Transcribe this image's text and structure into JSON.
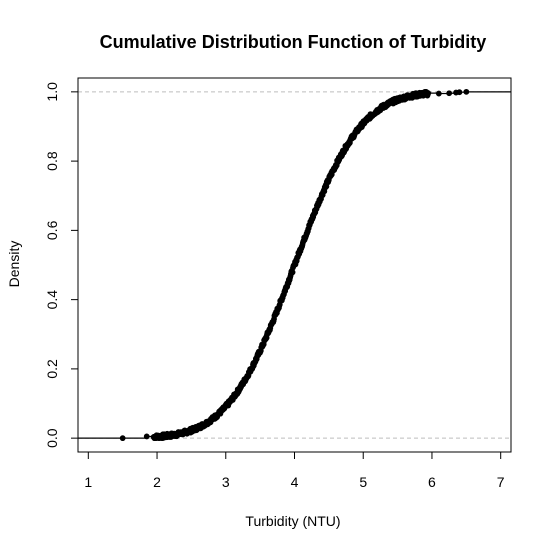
{
  "chart_data": {
    "type": "scatter",
    "title": "Cumulative Distribution Function of Turbidity",
    "xlabel": "Turbidity (NTU)",
    "ylabel": "Density",
    "xlim": [
      0.85,
      7.15
    ],
    "ylim": [
      -0.04,
      1.04
    ],
    "xticks": [
      1,
      2,
      3,
      4,
      5,
      6,
      7
    ],
    "yticks": [
      0.0,
      0.2,
      0.4,
      0.6,
      0.8,
      1.0
    ],
    "ytick_labels": [
      "0.0",
      "0.2",
      "0.4",
      "0.6",
      "0.8",
      "1.0"
    ],
    "reference_lines": [
      0,
      1
    ],
    "reference_line_style": "dashed",
    "reference_line_color": "#bebebe",
    "step_line": true,
    "point_color": "#000000",
    "sample_count": 1000,
    "distribution_mean": 4.0,
    "distribution_sd": 0.75,
    "points": [
      {
        "x": 1.5,
        "y": 0.0
      },
      {
        "x": 1.85,
        "y": 0.005
      },
      {
        "x": 6.1,
        "y": 0.995
      },
      {
        "x": 6.25,
        "y": 0.996
      },
      {
        "x": 6.35,
        "y": 0.998
      },
      {
        "x": 6.4,
        "y": 0.999
      },
      {
        "x": 6.5,
        "y": 1.0
      }
    ]
  }
}
